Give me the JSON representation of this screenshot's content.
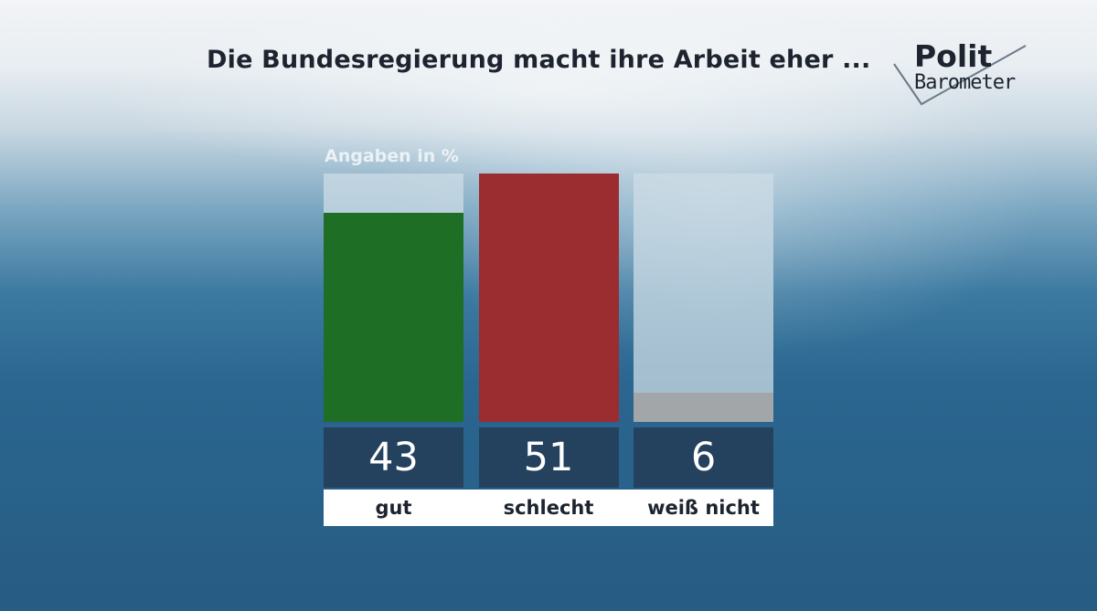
{
  "header": {
    "title": "Die Bundesregierung macht ihre Arbeit eher ...",
    "logo_top": "Polit",
    "logo_bottom": "Barometer"
  },
  "chart_data": {
    "type": "bar",
    "title": "Die Bundesregierung macht ihre Arbeit eher ...",
    "unit_label": "Angaben in %",
    "categories": [
      "gut",
      "schlecht",
      "weiß nicht"
    ],
    "values": [
      43,
      51,
      6
    ],
    "colors": [
      "#1f6e26",
      "#9b2c2f",
      "#a2a6a9"
    ],
    "ylim": [
      0,
      51
    ],
    "grid": false,
    "legend": "none"
  }
}
